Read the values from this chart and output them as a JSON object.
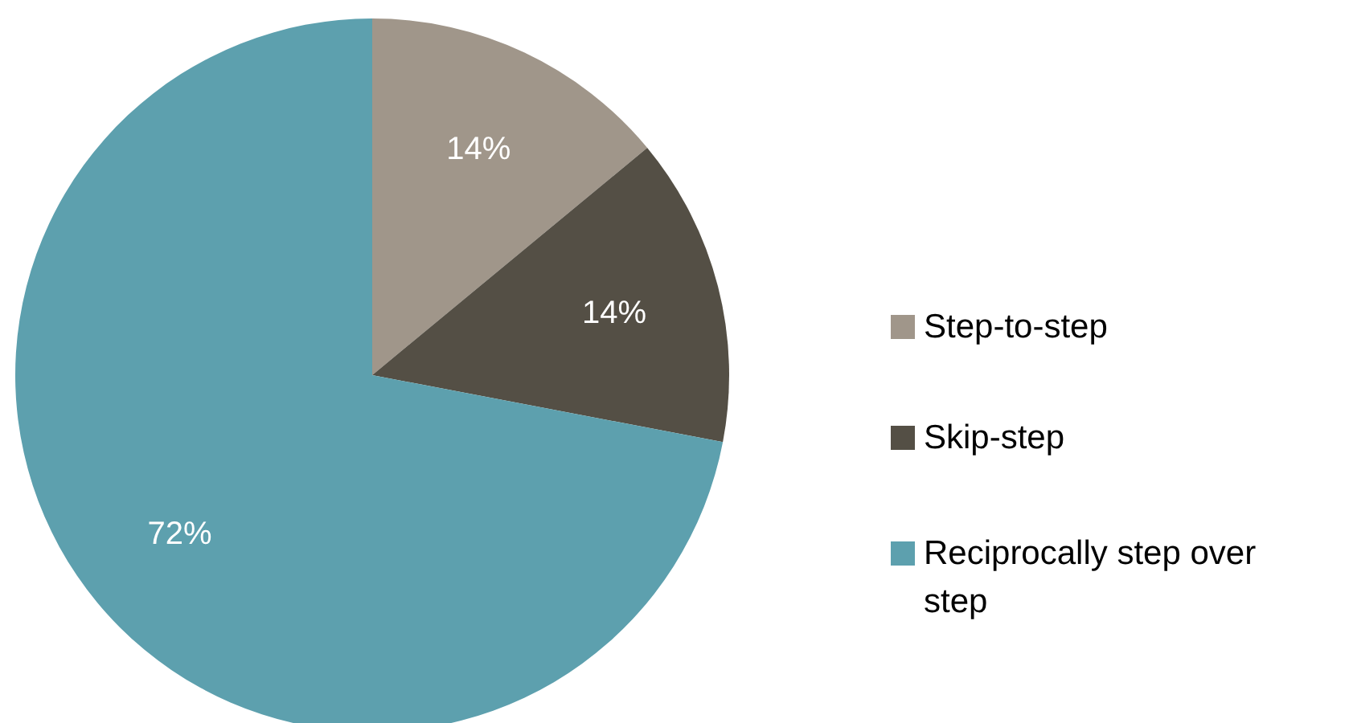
{
  "chart_data": {
    "type": "pie",
    "categories": [
      "Step-to-step",
      "Skip-step",
      "Reciprocally step over step"
    ],
    "values": [
      14,
      14,
      72
    ],
    "colors": [
      "#a0968a",
      "#544f45",
      "#5da0ae"
    ],
    "value_labels": [
      "14%",
      "14%",
      "72%"
    ],
    "legend": "right"
  }
}
